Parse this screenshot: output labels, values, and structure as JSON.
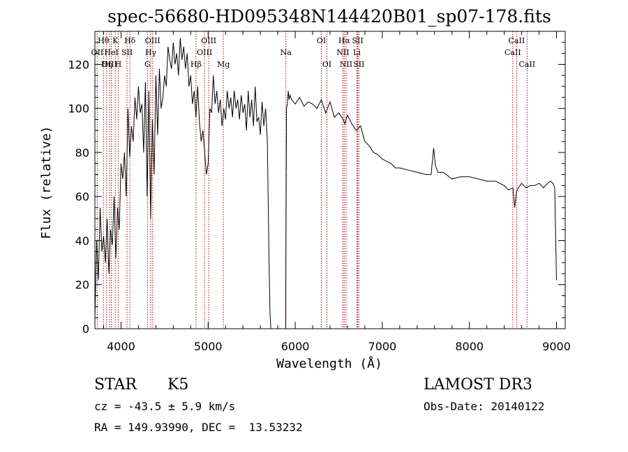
{
  "chart_data": {
    "type": "line",
    "title": "spec-56680-HD095348N144420B01_sp07-178.fits",
    "xlabel": "Wavelength (Å)",
    "ylabel": "Flux (relative)",
    "xlim": [
      3700,
      9100
    ],
    "ylim": [
      0,
      135
    ],
    "xticks": [
      4000,
      5000,
      6000,
      7000,
      8000,
      9000
    ],
    "yticks": [
      0,
      20,
      40,
      60,
      80,
      100,
      120
    ],
    "grid": false,
    "line_color": "#000000",
    "marker_color": "#aa0000",
    "series": [
      {
        "x": [
          3700,
          3720,
          3740,
          3760,
          3780,
          3800,
          3820,
          3840,
          3860,
          3880,
          3900,
          3920,
          3940,
          3960,
          3980,
          4000,
          4020,
          4040,
          4060,
          4080,
          4100,
          4120,
          4140,
          4160,
          4180,
          4200,
          4220,
          4240,
          4260,
          4280,
          4300,
          4320,
          4340,
          4360,
          4380,
          4400,
          4420,
          4440,
          4460,
          4480,
          4500,
          4520,
          4540,
          4560,
          4580,
          4600,
          4620,
          4640,
          4660,
          4680,
          4700,
          4720,
          4740,
          4760,
          4780,
          4800,
          4820,
          4840,
          4860,
          4880,
          4900,
          4920,
          4940,
          4960,
          4980,
          5000,
          5020,
          5040,
          5060,
          5080,
          5100,
          5120,
          5140,
          5160,
          5180,
          5200,
          5220,
          5240,
          5260,
          5280,
          5300,
          5320,
          5340,
          5360,
          5380,
          5400,
          5420,
          5440,
          5460,
          5480,
          5500,
          5520,
          5540,
          5560,
          5580,
          5600,
          5620,
          5640,
          5660,
          5680,
          5700,
          5710,
          5720,
          5730,
          5740,
          5760,
          5800,
          5850,
          5890,
          5900,
          5910,
          5920,
          5930,
          5940,
          5960,
          6000,
          6050,
          6100,
          6150,
          6200,
          6250,
          6300,
          6350,
          6400,
          6450,
          6500,
          6550,
          6570,
          6600,
          6650,
          6700,
          6750,
          6800,
          6850,
          6900,
          6950,
          7000,
          7050,
          7100,
          7150,
          7200,
          7300,
          7400,
          7500,
          7560,
          7590,
          7610,
          7640,
          7700,
          7800,
          7900,
          8000,
          8100,
          8200,
          8300,
          8400,
          8450,
          8500,
          8520,
          8540,
          8560,
          8600,
          8650,
          8700,
          8750,
          8800,
          8850,
          8900,
          8930,
          8960,
          8980,
          9000
        ],
        "values": [
          5,
          40,
          22,
          55,
          35,
          42,
          30,
          50,
          25,
          45,
          38,
          60,
          32,
          55,
          45,
          75,
          68,
          80,
          60,
          100,
          78,
          92,
          85,
          105,
          95,
          110,
          98,
          102,
          80,
          112,
          60,
          108,
          50,
          95,
          70,
          115,
          88,
          118,
          100,
          105,
          115,
          110,
          128,
          122,
          118,
          130,
          120,
          125,
          115,
          132,
          122,
          128,
          118,
          125,
          110,
          115,
          102,
          108,
          96,
          110,
          94,
          85,
          90,
          80,
          70,
          75,
          100,
          98,
          115,
          102,
          108,
          98,
          104,
          92,
          100,
          95,
          108,
          100,
          105,
          96,
          108,
          100,
          104,
          95,
          106,
          98,
          102,
          90,
          108,
          96,
          104,
          92,
          110,
          94,
          96,
          88,
          103,
          92,
          100,
          86,
          30,
          8,
          0,
          0,
          0,
          0,
          0,
          0,
          0,
          100,
          102,
          108,
          104,
          106,
          104,
          102,
          105,
          101,
          103,
          102,
          100,
          104,
          98,
          103,
          96,
          98,
          95,
          93,
          97,
          93,
          90,
          92,
          85,
          83,
          80,
          79,
          77,
          76,
          75,
          73,
          73,
          72,
          71,
          70,
          70,
          82,
          74,
          71,
          71,
          68,
          69,
          69,
          68,
          67,
          67,
          65,
          63,
          64,
          55,
          62,
          64,
          66,
          64,
          65,
          65,
          66,
          64,
          66,
          67,
          66,
          64,
          22
        ]
      }
    ],
    "line_labels": [
      {
        "text": "Hθ",
        "x": 3798,
        "row": 1
      },
      {
        "text": "K",
        "x": 3934,
        "row": 1
      },
      {
        "text": "Hδ",
        "x": 4102,
        "row": 1
      },
      {
        "text": "OIII",
        "x": 4363,
        "row": 1
      },
      {
        "text": "OIII",
        "x": 5007,
        "row": 1
      },
      {
        "text": "OI",
        "x": 6300,
        "row": 1
      },
      {
        "text": "Hα",
        "x": 6563,
        "row": 1
      },
      {
        "text": "SII",
        "x": 6717,
        "row": 1
      },
      {
        "text": "CaII",
        "x": 8542,
        "row": 1
      },
      {
        "text": "OII",
        "x": 3727,
        "row": 2
      },
      {
        "text": "HeI",
        "x": 3889,
        "row": 2
      },
      {
        "text": "SII",
        "x": 4069,
        "row": 2
      },
      {
        "text": "Hγ",
        "x": 4341,
        "row": 2
      },
      {
        "text": "OIII",
        "x": 4959,
        "row": 2
      },
      {
        "text": "Na",
        "x": 5893,
        "row": 2
      },
      {
        "text": "NII",
        "x": 6548,
        "row": 2
      },
      {
        "text": "Li",
        "x": 6708,
        "row": 2
      },
      {
        "text": "CaII",
        "x": 8498,
        "row": 2
      },
      {
        "text": "OIII",
        "x": 3869,
        "row": 3
      },
      {
        "text": "Hη",
        "x": 3835,
        "row": 3
      },
      {
        "text": "H",
        "x": 3968,
        "row": 3
      },
      {
        "text": "G",
        "x": 4304,
        "row": 3
      },
      {
        "text": "Hβ",
        "x": 4861,
        "row": 3
      },
      {
        "text": "Mg",
        "x": 5175,
        "row": 3
      },
      {
        "text": "OI",
        "x": 6364,
        "row": 3
      },
      {
        "text": "NII",
        "x": 6584,
        "row": 3
      },
      {
        "text": "SII",
        "x": 6731,
        "row": 3
      },
      {
        "text": "CaII",
        "x": 8662,
        "row": 3
      }
    ]
  },
  "info": {
    "object_type": "STAR",
    "subclass": "K5",
    "survey": "LAMOST DR3",
    "cz": "cz = -43.5 ± 5.9 km/s",
    "obs_date": "Obs-Date: 20140122",
    "coords": "RA = 149.93990, DEC =  13.53232"
  }
}
